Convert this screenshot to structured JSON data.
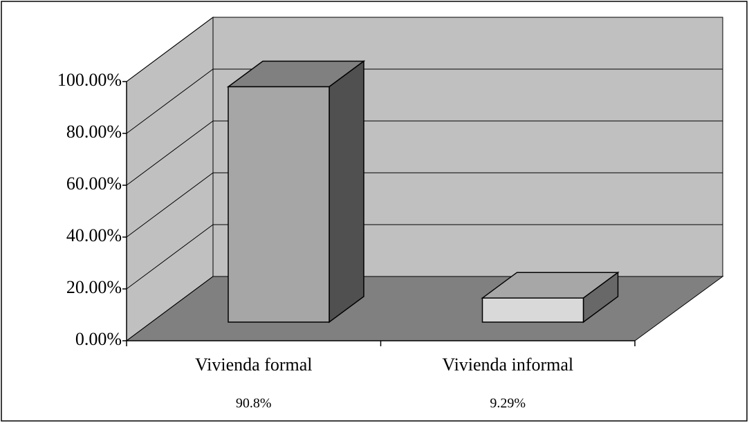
{
  "chart_data": {
    "type": "bar3d",
    "categories": [
      "Vivienda formal",
      "Vivienda informal"
    ],
    "values": [
      90.8,
      9.29
    ],
    "value_labels": [
      "90.8%",
      "9.29%"
    ],
    "colors": [
      "#a6a6a6",
      "#d9d9d9"
    ],
    "ylim": [
      0,
      100
    ],
    "yticks": [
      {
        "value": 0,
        "label": "0.00%"
      },
      {
        "value": 20,
        "label": "20.00%"
      },
      {
        "value": 40,
        "label": "40.00%"
      },
      {
        "value": 60,
        "label": "60.00%"
      },
      {
        "value": 80,
        "label": "80.00%"
      },
      {
        "value": 100,
        "label": "100.00%"
      }
    ],
    "grid": true
  }
}
